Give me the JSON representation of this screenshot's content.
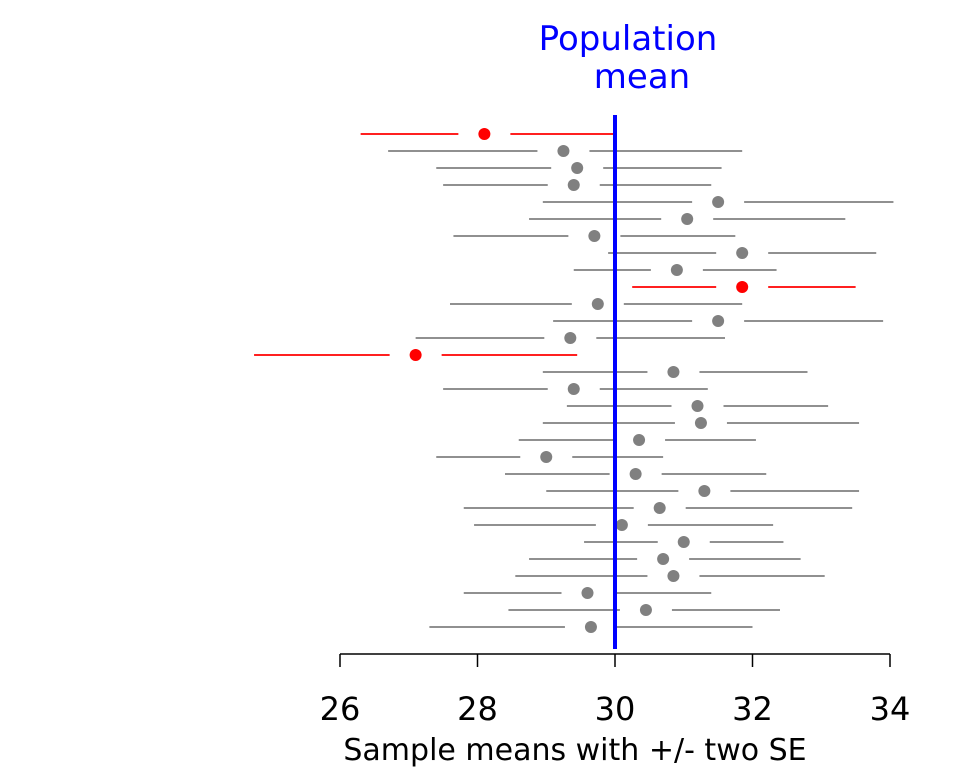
{
  "chart_data": {
    "type": "scatter",
    "title": "",
    "xlabel": "Sample means with +/- two SE",
    "ylabel": "",
    "xlim": [
      26,
      34
    ],
    "x_ticks": [
      "26",
      "28",
      "30",
      "32",
      "34"
    ],
    "grid": false,
    "reference_line": {
      "x": 30,
      "label_line1": "Population",
      "label_line2": "mean",
      "color": "#0000ff"
    },
    "colors": {
      "covers": "#808080",
      "misses": "#ff0000"
    },
    "intervals": [
      {
        "mean": 28.1,
        "lower": 26.3,
        "upper": 30.0,
        "misses": true
      },
      {
        "mean": 29.25,
        "lower": 26.7,
        "upper": 31.85,
        "misses": false
      },
      {
        "mean": 29.45,
        "lower": 27.4,
        "upper": 31.55,
        "misses": false
      },
      {
        "mean": 29.4,
        "lower": 27.5,
        "upper": 31.4,
        "misses": false
      },
      {
        "mean": 31.5,
        "lower": 28.95,
        "upper": 34.05,
        "misses": false
      },
      {
        "mean": 31.05,
        "lower": 28.75,
        "upper": 33.35,
        "misses": false
      },
      {
        "mean": 29.7,
        "lower": 27.65,
        "upper": 31.75,
        "misses": false
      },
      {
        "mean": 31.85,
        "lower": 29.9,
        "upper": 33.8,
        "misses": false
      },
      {
        "mean": 30.9,
        "lower": 29.4,
        "upper": 32.35,
        "misses": false
      },
      {
        "mean": 31.85,
        "lower": 30.25,
        "upper": 33.5,
        "misses": true
      },
      {
        "mean": 29.75,
        "lower": 27.6,
        "upper": 31.85,
        "misses": false
      },
      {
        "mean": 31.5,
        "lower": 29.1,
        "upper": 33.9,
        "misses": false
      },
      {
        "mean": 29.35,
        "lower": 27.1,
        "upper": 31.6,
        "misses": false
      },
      {
        "mean": 27.1,
        "lower": 24.75,
        "upper": 29.45,
        "misses": true
      },
      {
        "mean": 30.85,
        "lower": 28.95,
        "upper": 32.8,
        "misses": false
      },
      {
        "mean": 29.4,
        "lower": 27.5,
        "upper": 31.35,
        "misses": false
      },
      {
        "mean": 31.2,
        "lower": 29.3,
        "upper": 33.1,
        "misses": false
      },
      {
        "mean": 31.25,
        "lower": 28.95,
        "upper": 33.55,
        "misses": false
      },
      {
        "mean": 30.35,
        "lower": 28.6,
        "upper": 32.05,
        "misses": false
      },
      {
        "mean": 29.0,
        "lower": 27.4,
        "upper": 30.7,
        "misses": false
      },
      {
        "mean": 30.3,
        "lower": 28.4,
        "upper": 32.2,
        "misses": false
      },
      {
        "mean": 31.3,
        "lower": 29.0,
        "upper": 33.55,
        "misses": false
      },
      {
        "mean": 30.65,
        "lower": 27.8,
        "upper": 33.45,
        "misses": false
      },
      {
        "mean": 30.1,
        "lower": 27.95,
        "upper": 32.3,
        "misses": false
      },
      {
        "mean": 31.0,
        "lower": 29.55,
        "upper": 32.45,
        "misses": false
      },
      {
        "mean": 30.7,
        "lower": 28.75,
        "upper": 32.7,
        "misses": false
      },
      {
        "mean": 30.85,
        "lower": 28.55,
        "upper": 33.05,
        "misses": false
      },
      {
        "mean": 29.6,
        "lower": 27.8,
        "upper": 31.4,
        "misses": false
      },
      {
        "mean": 30.45,
        "lower": 28.45,
        "upper": 32.4,
        "misses": false
      },
      {
        "mean": 29.65,
        "lower": 27.3,
        "upper": 32.0,
        "misses": false
      }
    ]
  }
}
